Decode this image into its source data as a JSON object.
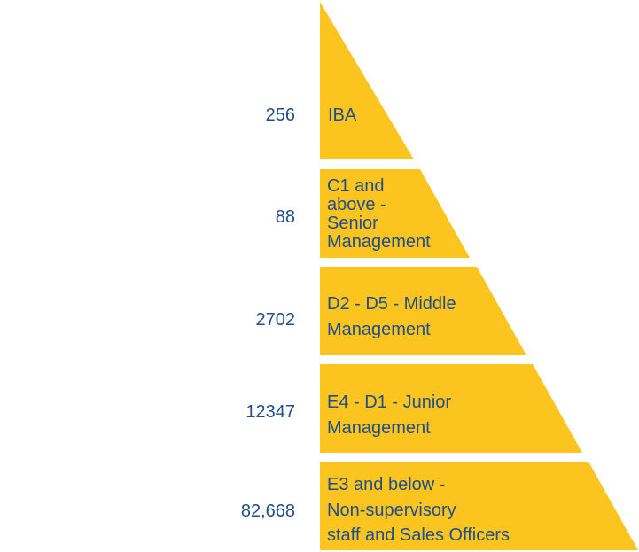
{
  "colors": {
    "tier_fill": "#fcc41f",
    "text": "#1f4e8c",
    "background": "#ffffff"
  },
  "tiers": [
    {
      "count": "256",
      "label_lines": [
        "IBA"
      ]
    },
    {
      "count": "88",
      "label_lines": [
        "C1 and",
        "above -",
        "Senior",
        "Management"
      ]
    },
    {
      "count": "2702",
      "label_lines": [
        "D2 - D5 - Middle",
        "Management"
      ]
    },
    {
      "count": "12347",
      "label_lines": [
        "E4 - D1 - Junior",
        "Management"
      ]
    },
    {
      "count": "82,668",
      "label_lines": [
        "E3 and below -",
        "Non-supervisory",
        "staff and Sales Officers"
      ]
    }
  ]
}
